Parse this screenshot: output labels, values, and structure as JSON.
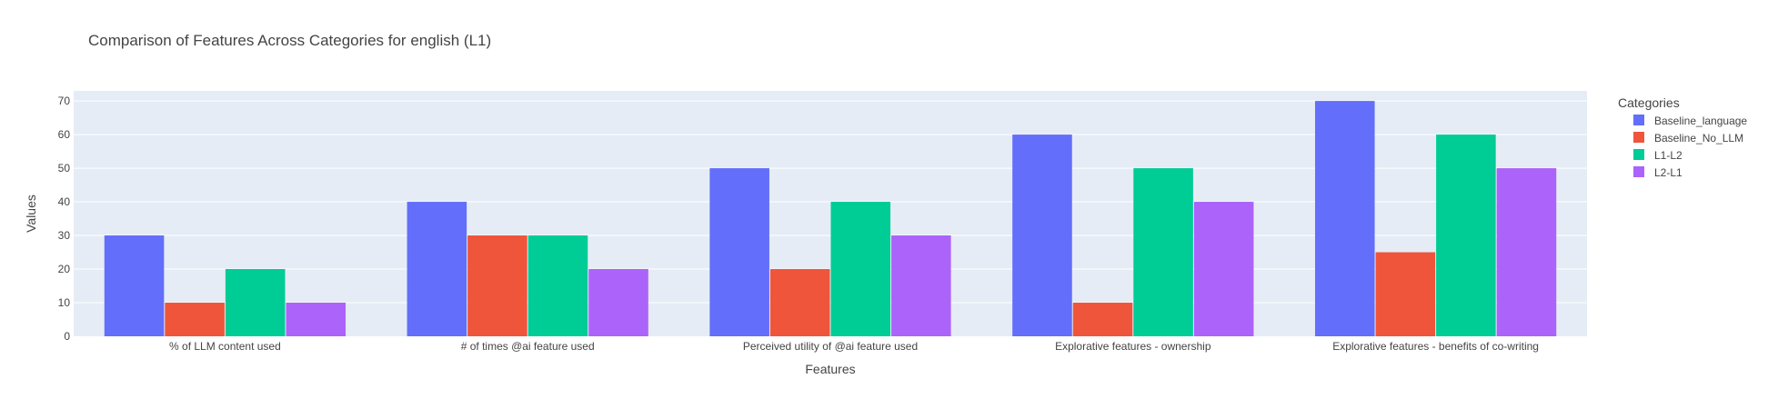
{
  "chart_data": {
    "type": "bar",
    "title": "Comparison of Features Across Categories for english (L1)",
    "xlabel": "Features",
    "ylabel": "Values",
    "ylim": [
      0,
      73
    ],
    "yticks": [
      0,
      10,
      20,
      30,
      40,
      50,
      60,
      70
    ],
    "grid": true,
    "legend_title": "Categories",
    "legend_position": "right",
    "categories": [
      "% of LLM content used",
      "# of times @ai feature used",
      "Perceived utility of @ai feature used",
      "Explorative features - ownership",
      "Explorative features - benefits of co-writing"
    ],
    "series": [
      {
        "name": "Baseline_language",
        "color": "#636efa",
        "values": [
          30,
          40,
          50,
          60,
          70
        ]
      },
      {
        "name": "Baseline_No_LLM",
        "color": "#ef553b",
        "values": [
          10,
          30,
          20,
          10,
          25
        ]
      },
      {
        "name": "L1-L2",
        "color": "#00cc96",
        "values": [
          20,
          30,
          40,
          50,
          60
        ]
      },
      {
        "name": "L2-L1",
        "color": "#ab63fa",
        "values": [
          10,
          20,
          30,
          40,
          50
        ]
      }
    ]
  }
}
